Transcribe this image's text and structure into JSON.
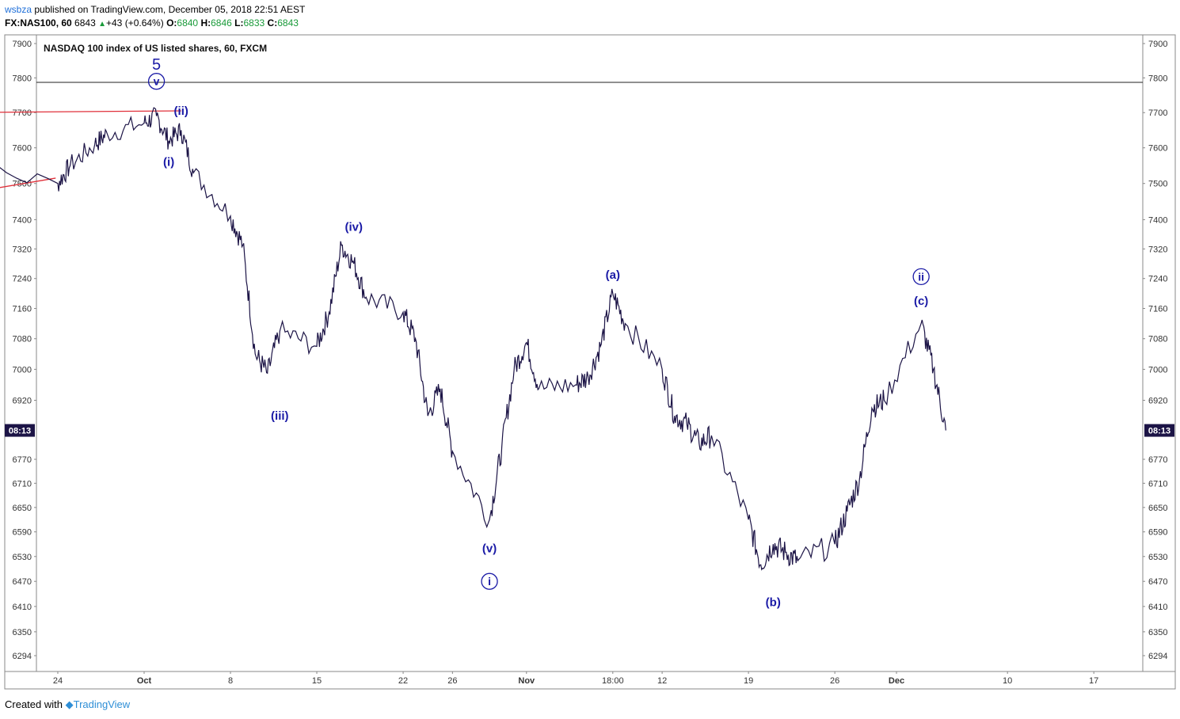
{
  "header": {
    "user": "wsbza",
    "published": "published on TradingView.com, December 05, 2018 22:51 AEST",
    "symbol_interval": "FX:NAS100, 60",
    "last": "6843",
    "change_arrow": "▲",
    "change": "+43 (+0.64%)",
    "o_label": "O:",
    "o": "6840",
    "h_label": "H:",
    "h": "6846",
    "l_label": "L:",
    "l": "6833",
    "c_label": "C:",
    "c": "6843"
  },
  "footer": {
    "created_with": "Created with",
    "brand": "TradingView"
  },
  "colors": {
    "price": "#1c1446",
    "wave": "#1a1aa6",
    "trendline": "#e0303a",
    "axis": "#333333",
    "price_label_bg": "#1c1446"
  },
  "chart_data": {
    "type": "line",
    "title": "NASDAQ 100 index of US listed shares, 60, FXCM",
    "xlabel": "",
    "ylabel": "",
    "ylim": [
      6260,
      7940
    ],
    "y_scale": "log",
    "y_ticks": [
      7900,
      7800,
      7700,
      7600,
      7500,
      7400,
      7320,
      7240,
      7160,
      7080,
      7000,
      6920,
      6770,
      6710,
      6650,
      6590,
      6530,
      6470,
      6410,
      6350,
      6294
    ],
    "x_ticks": [
      "24",
      "Oct",
      "8",
      "15",
      "22",
      "26",
      "Nov",
      "18:00",
      "12",
      "19",
      "26",
      "Dec",
      "10",
      "17"
    ],
    "current_price_label": "08:13",
    "current_price": 6843,
    "x": [
      "Sep 21",
      "Sep 24",
      "Sep 25",
      "Sep 27",
      "Sep 28",
      "Oct 1",
      "Oct 2",
      "Oct 3",
      "Oct 4",
      "Oct 5",
      "Oct 8",
      "Oct 9",
      "Oct 10",
      "Oct 11",
      "Oct 12",
      "Oct 15",
      "Oct 16",
      "Oct 17",
      "Oct 18",
      "Oct 19",
      "Oct 22",
      "Oct 23",
      "Oct 24",
      "Oct 25",
      "Oct 26",
      "Oct 29",
      "Oct 30",
      "Oct 31",
      "Nov 1",
      "Nov 2",
      "Nov 5",
      "Nov 6",
      "Nov 7",
      "Nov 8",
      "Nov 9",
      "Nov 12",
      "Nov 13",
      "Nov 14",
      "Nov 15",
      "Nov 16",
      "Nov 19",
      "Nov 20",
      "Nov 21",
      "Nov 22",
      "Nov 23",
      "Nov 26",
      "Nov 27",
      "Nov 28",
      "Nov 29",
      "Nov 30",
      "Dec 3",
      "Dec 4",
      "Dec 5"
    ],
    "y": [
      7570,
      7500,
      7550,
      7610,
      7640,
      7670,
      7690,
      7620,
      7650,
      7530,
      7410,
      7330,
      7040,
      6990,
      7100,
      7060,
      7150,
      7330,
      7280,
      7190,
      7150,
      7080,
      6880,
      6950,
      6790,
      6620,
      6800,
      7000,
      7070,
      6950,
      6960,
      6980,
      7060,
      7200,
      7120,
      7000,
      6880,
      6860,
      6810,
      6830,
      6620,
      6510,
      6560,
      6540,
      6520,
      6560,
      6640,
      6720,
      6900,
      6920,
      7120,
      7000,
      6843
    ],
    "horizontal_lines": [
      7787
    ],
    "trendlines": [
      {
        "from": [
          "Sep 21",
          7700
        ],
        "to": [
          "Oct 4",
          7705
        ]
      },
      {
        "from": [
          "Sep 21",
          7465
        ],
        "to": [
          "Sep 28",
          7515
        ]
      }
    ],
    "wave_labels": [
      {
        "text": "5",
        "at": "Oct 2",
        "y": 7835
      },
      {
        "text": "v",
        "at": "Oct 2",
        "y": 7790,
        "circled": true
      },
      {
        "text": "(ii)",
        "at": "Oct 4",
        "y": 7705
      },
      {
        "text": "(i)",
        "at": "Oct 3",
        "y": 7560
      },
      {
        "text": "(iii)",
        "at": "Oct 12",
        "y": 6880
      },
      {
        "text": "(iv)",
        "at": "Oct 18",
        "y": 7380
      },
      {
        "text": "(v)",
        "at": "Oct 29",
        "y": 6550
      },
      {
        "text": "i",
        "at": "Oct 29",
        "y": 6470,
        "circled": true
      },
      {
        "text": "(a)",
        "at": "Nov 8",
        "y": 7250
      },
      {
        "text": "(b)",
        "at": "Nov 21",
        "y": 6420
      },
      {
        "text": "ii",
        "at": "Dec 3",
        "y": 7245,
        "circled": true
      },
      {
        "text": "(c)",
        "at": "Dec 3",
        "y": 7180
      }
    ]
  }
}
